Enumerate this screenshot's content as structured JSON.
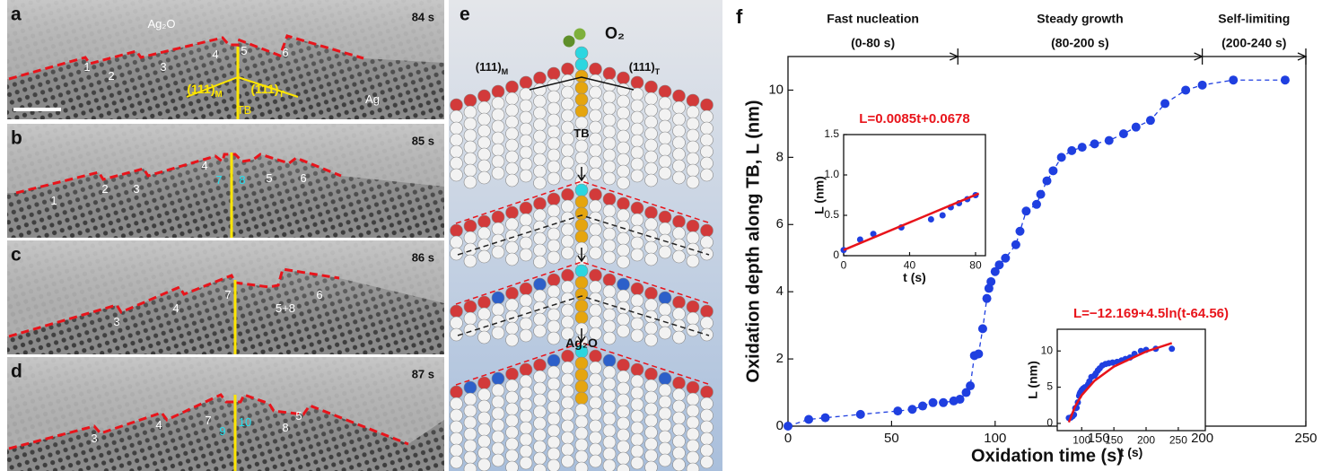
{
  "panels": [
    {
      "letter": "a",
      "time": "84 s",
      "labels": [
        {
          "text": "Ag₂O",
          "color": "#ffffff"
        },
        {
          "text": "1",
          "color": "#ffffff"
        },
        {
          "text": "2",
          "color": "#ffffff"
        },
        {
          "text": "3",
          "color": "#ffffff"
        },
        {
          "text": "4",
          "color": "#ffffff"
        },
        {
          "text": "5",
          "color": "#ffffff"
        },
        {
          "text": "6",
          "color": "#ffffff"
        },
        {
          "text": "(111)",
          "sub": "M",
          "color": "#ffe600"
        },
        {
          "text": "(111)",
          "sub": "T",
          "color": "#ffe600"
        },
        {
          "text": "TB",
          "color": "#ffe600"
        },
        {
          "text": "Ag",
          "color": "#ffffff"
        }
      ]
    },
    {
      "letter": "b",
      "time": "85 s",
      "labels": [
        {
          "text": "1",
          "color": "#ffffff"
        },
        {
          "text": "2",
          "color": "#ffffff"
        },
        {
          "text": "3",
          "color": "#ffffff"
        },
        {
          "text": "4",
          "color": "#ffffff"
        },
        {
          "text": "7",
          "color": "#22e0f0"
        },
        {
          "text": "8",
          "color": "#22e0f0"
        },
        {
          "text": "5",
          "color": "#ffffff"
        },
        {
          "text": "6",
          "color": "#ffffff"
        }
      ]
    },
    {
      "letter": "c",
      "time": "86 s",
      "labels": [
        {
          "text": "3",
          "color": "#ffffff"
        },
        {
          "text": "4",
          "color": "#ffffff"
        },
        {
          "text": "7",
          "color": "#ffffff"
        },
        {
          "text": "5+8",
          "color": "#ffffff"
        },
        {
          "text": "6",
          "color": "#ffffff"
        }
      ]
    },
    {
      "letter": "d",
      "time": "87 s",
      "labels": [
        {
          "text": "3",
          "color": "#ffffff"
        },
        {
          "text": "4",
          "color": "#ffffff"
        },
        {
          "text": "7",
          "color": "#ffffff"
        },
        {
          "text": "9",
          "color": "#22e0f0"
        },
        {
          "text": "10",
          "color": "#22e0f0"
        },
        {
          "text": "8",
          "color": "#ffffff"
        },
        {
          "text": "5",
          "color": "#ffffff"
        }
      ]
    }
  ],
  "model": {
    "letter": "e",
    "labels": [
      {
        "text": "O₂"
      },
      {
        "text": "(111)",
        "sub": "M"
      },
      {
        "text": "(111)",
        "sub": "T"
      },
      {
        "text": "TB"
      },
      {
        "text": "Ag₂O"
      }
    ]
  },
  "chart_data": [
    {
      "type": "line",
      "letter": "f",
      "x_label": "Oxidation time (s)",
      "y_label": "Oxidation depth along TB, L (nm)",
      "xlim": [
        0,
        250
      ],
      "ylim": [
        0,
        11
      ],
      "xticks": [
        0,
        50,
        100,
        150,
        200,
        250
      ],
      "yticks": [
        0,
        2,
        4,
        6,
        8,
        10
      ],
      "phases": [
        {
          "name": "Fast nucleation",
          "range": "(0-80 s)",
          "start": 0,
          "end": 82
        },
        {
          "name": "Steady growth",
          "range": "(80-200 s)",
          "start": 82,
          "end": 200
        },
        {
          "name": "Self-limiting",
          "range": "(200-240 s)",
          "start": 200,
          "end": 250
        }
      ],
      "series": [
        {
          "color": "#1f3fe0",
          "x": [
            0,
            10,
            18,
            35,
            53,
            60,
            65,
            70,
            75,
            80,
            83,
            86,
            88,
            90,
            92,
            94,
            96,
            97,
            98,
            100,
            102,
            105,
            110,
            112,
            115,
            120,
            122,
            125,
            128,
            132,
            137,
            142,
            148,
            155,
            162,
            168,
            175,
            182,
            192,
            200,
            215,
            240
          ],
          "values": [
            0,
            0.2,
            0.25,
            0.35,
            0.45,
            0.5,
            0.6,
            0.7,
            0.7,
            0.75,
            0.8,
            1.0,
            1.2,
            2.1,
            2.15,
            2.9,
            3.8,
            4.1,
            4.3,
            4.6,
            4.8,
            5.0,
            5.4,
            5.8,
            6.4,
            6.6,
            6.9,
            7.3,
            7.6,
            8.0,
            8.2,
            8.3,
            8.4,
            8.5,
            8.7,
            8.9,
            9.1,
            9.6,
            10.0,
            10.15,
            10.3,
            10.3
          ]
        }
      ]
    },
    {
      "type": "scatter",
      "fit_label": "L=0.0085t+0.0678",
      "x_label": "t (s)",
      "y_label": "L (nm)",
      "xlim": [
        0,
        86
      ],
      "ylim": [
        0,
        1.5
      ],
      "xticks": [
        0,
        40,
        80
      ],
      "yticks": [
        0,
        0.5,
        {
          "value": 1,
          "label": "1.0"
        },
        1.5
      ],
      "series": [
        {
          "color": "#1f3fe0",
          "x": [
            0,
            10,
            18,
            35,
            53,
            60,
            65,
            70,
            75,
            80
          ],
          "values": [
            0.07,
            0.2,
            0.27,
            0.35,
            0.45,
            0.5,
            0.6,
            0.65,
            0.7,
            0.75
          ]
        }
      ],
      "fit": {
        "color": "#e8141b",
        "x": [
          0,
          82
        ],
        "values": [
          0.07,
          0.77
        ]
      }
    },
    {
      "type": "scatter",
      "fit_label": "L=−12.169+4.5ln(t-64.56)",
      "x_label": "t (s)",
      "y_label": "L (nm)",
      "xlim": [
        62,
        292
      ],
      "ylim": [
        -1,
        13
      ],
      "xticks": [
        100,
        150,
        200,
        250
      ],
      "yticks": [
        0,
        5,
        10
      ],
      "series": [
        {
          "color": "#1f3fe0",
          "x": [
            80,
            83,
            86,
            88,
            90,
            92,
            94,
            96,
            97,
            98,
            100,
            102,
            105,
            110,
            112,
            115,
            120,
            122,
            125,
            128,
            132,
            137,
            142,
            148,
            155,
            162,
            168,
            175,
            182,
            192,
            200,
            215,
            240
          ],
          "values": [
            0.75,
            0.8,
            1.0,
            1.2,
            2.1,
            2.15,
            2.9,
            3.8,
            4.1,
            4.3,
            4.6,
            4.8,
            5.0,
            5.4,
            5.8,
            6.4,
            6.6,
            6.9,
            7.3,
            7.6,
            8.0,
            8.2,
            8.3,
            8.4,
            8.5,
            8.7,
            8.9,
            9.1,
            9.6,
            10.0,
            10.15,
            10.3,
            10.3
          ]
        }
      ],
      "fit": {
        "color": "#e8141b",
        "x": [
          80,
          90,
          100,
          120,
          150,
          200,
          240
        ],
        "values": [
          0.15,
          2.39,
          3.89,
          5.9,
          7.85,
          9.92,
          11.08
        ]
      }
    }
  ]
}
